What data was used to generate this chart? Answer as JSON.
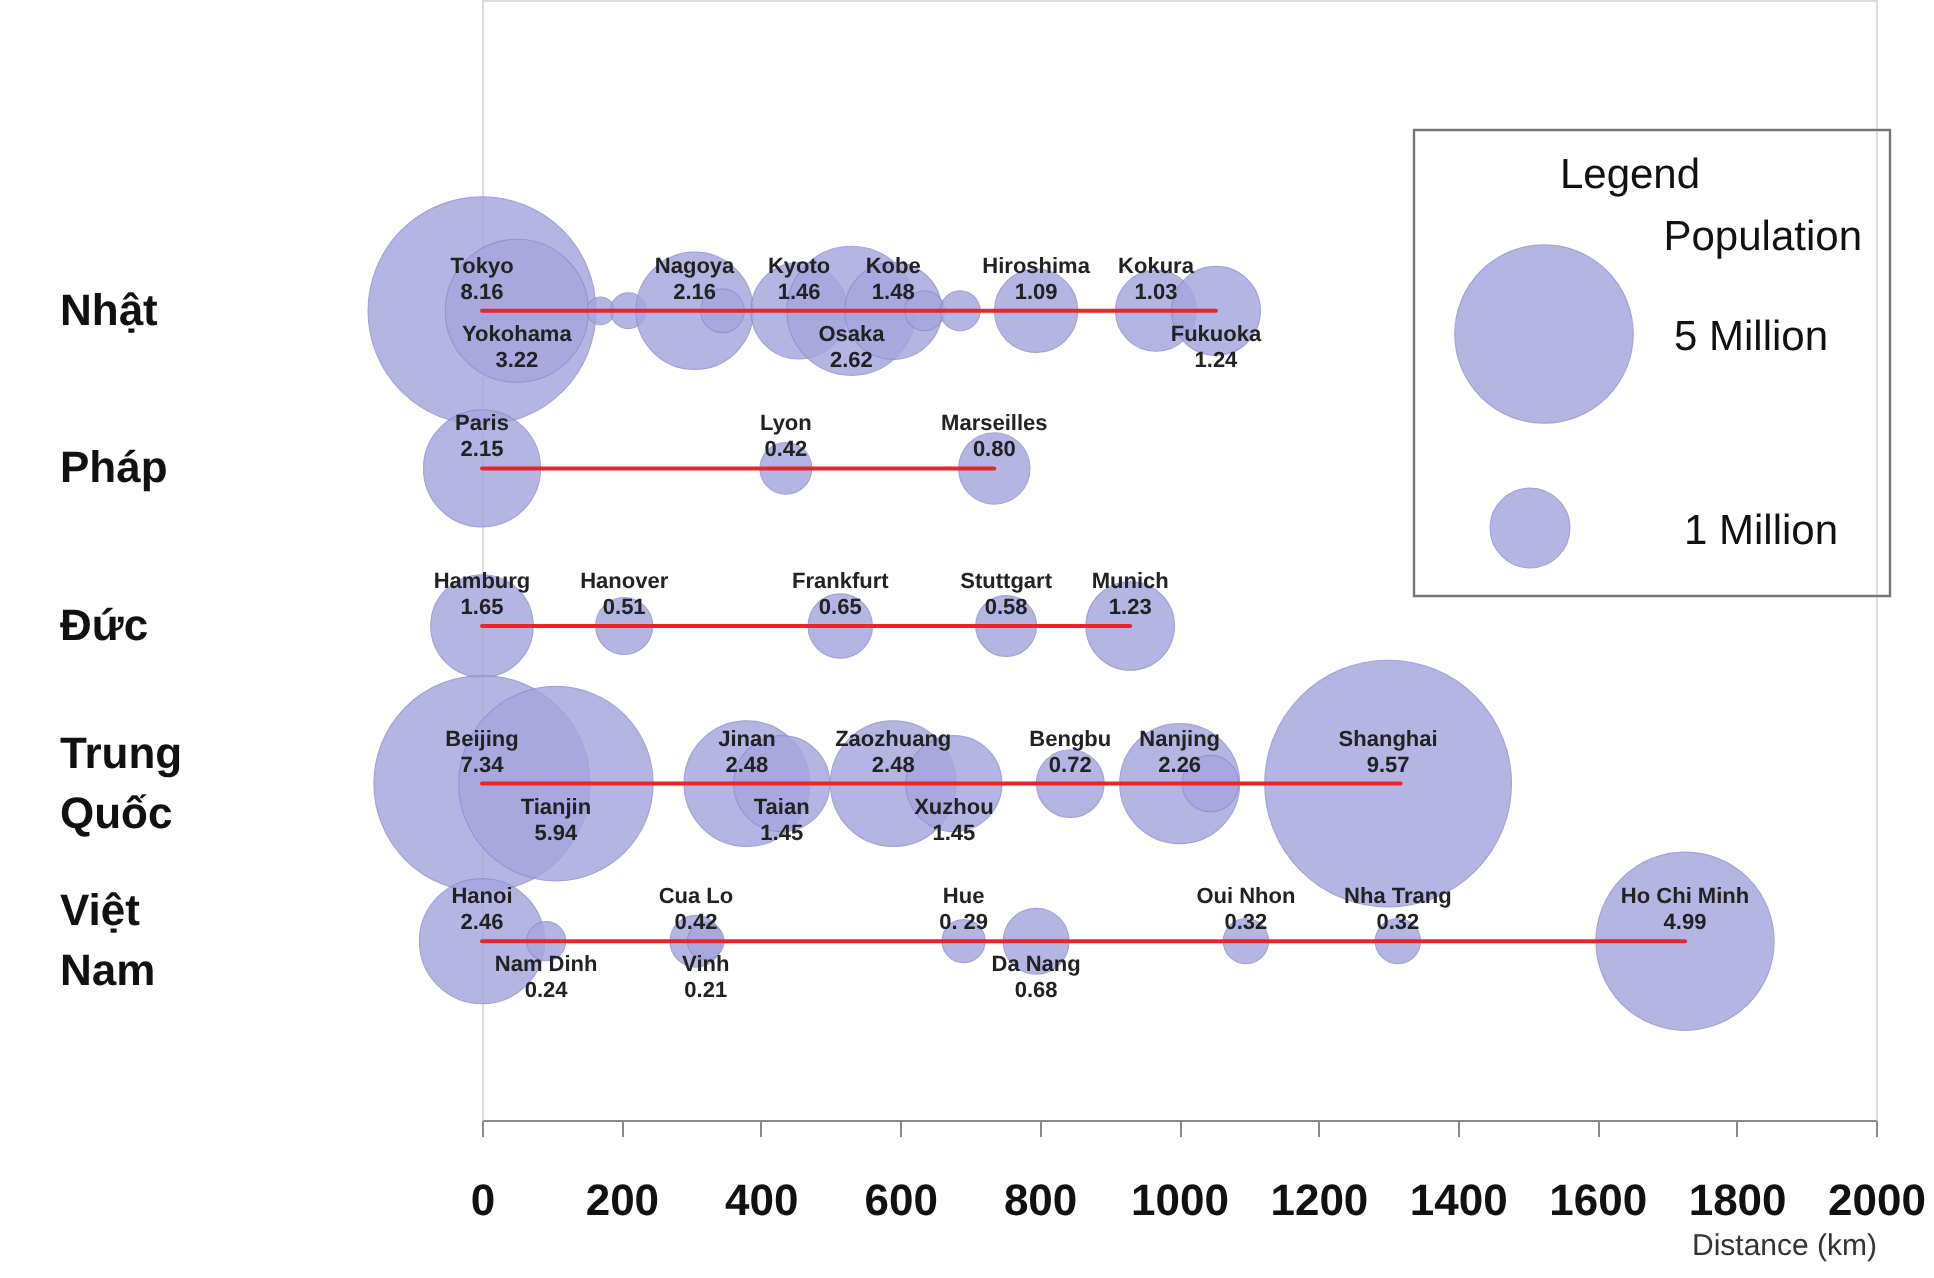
{
  "chart_data": {
    "type": "bubble",
    "orientation": "horizontal",
    "xlabel": "Distance (km)",
    "xlim": [
      0,
      2000
    ],
    "xticks": [
      0,
      200,
      400,
      600,
      800,
      1000,
      1200,
      1400,
      1600,
      1800,
      2000
    ],
    "categories": [
      "Nhật",
      "Pháp",
      "Đức",
      "Trung Quốc",
      "Việt Nam"
    ],
    "legend_title": "Legend\nPopulation",
    "size_legend": [
      {
        "value": 5,
        "label": "5 Million"
      },
      {
        "value": 1,
        "label": "1 Million"
      }
    ],
    "series": [
      {
        "color": "#a6a6de",
        "x": [
          "Nhật",
          "Nhật",
          "Nhật",
          "Nhật",
          "Nhật",
          "Nhật",
          "Nhật",
          "Nhật",
          "Nhật",
          "Nhật",
          "Nhật",
          "Nhật",
          "Nhật",
          "Nhật"
        ],
        "values": [
          0,
          50,
          170,
          210,
          305,
          345,
          455,
          530,
          590,
          635,
          686,
          795,
          967,
          1053
        ],
        "sizes": [
          8.16,
          3.22,
          0.12,
          0.2,
          2.16,
          0.3,
          1.46,
          2.62,
          1.48,
          0.25,
          0.25,
          1.09,
          1.03,
          1.24
        ],
        "value_labels": [
          "Tokyo\n8.16",
          "Yokohama\n3.22",
          null,
          null,
          "Nagoya\n2.16",
          null,
          "Kyoto\n1.46",
          "Osaka\n2.62",
          "Kobe\n1.48",
          null,
          null,
          "Hiroshima\n1.09",
          "Kokura\n1.03",
          "Fukuoka\n1.24"
        ]
      },
      {
        "color": "#a6a6de",
        "x": [
          "Pháp",
          "Pháp",
          "Pháp"
        ],
        "values": [
          0,
          436,
          735
        ],
        "sizes": [
          2.15,
          0.42,
          0.8
        ],
        "value_labels": [
          "Paris\n2.15",
          "Lyon\n0.42",
          "Marseilles\n0.80"
        ]
      },
      {
        "color": "#a6a6de",
        "x": [
          "Đức",
          "Đức",
          "Đức",
          "Đức",
          "Đức"
        ],
        "values": [
          0,
          204,
          514,
          752,
          930
        ],
        "sizes": [
          1.65,
          0.51,
          0.65,
          0.58,
          1.23
        ],
        "value_labels": [
          "Hamburg\n1.65",
          "Hanover\n0.51",
          "Frankfurt\n0.65",
          "Stuttgart\n0.58",
          "Munich\n1.23"
        ]
      },
      {
        "color": "#a6a6de",
        "x": [
          "Trung Quốc",
          "Trung Quốc",
          "Trung Quốc",
          "Trung Quốc",
          "Trung Quốc",
          "Trung Quốc",
          "Trung Quốc",
          "Trung Quốc",
          "Trung Quốc",
          "Trung Quốc"
        ],
        "values": [
          0,
          106,
          380,
          430,
          590,
          677,
          844,
          1001,
          1045,
          1300
        ],
        "sizes": [
          7.34,
          5.94,
          2.48,
          1.45,
          2.48,
          1.45,
          0.72,
          2.26,
          0.5,
          9.57
        ],
        "value_labels": [
          "Beijing\n7.34",
          "Tianjin\n5.94",
          "Jinan\n2.48",
          "Taian\n1.45",
          "Zaozhuang\n2.48",
          "Xuzhou\n1.45",
          "Bengbu\n0.72",
          "Nanjing\n2.26",
          null,
          "Shanghai\n9.57"
        ]
      },
      {
        "color": "#a6a6de",
        "x": [
          "Việt Nam",
          "Việt Nam",
          "Việt Nam",
          "Việt Nam",
          "Việt Nam",
          "Việt Nam",
          "Việt Nam",
          "Việt Nam",
          "Việt Nam"
        ],
        "values": [
          0,
          92,
          307,
          321,
          691,
          795,
          1096,
          1314,
          1726
        ],
        "sizes": [
          2.46,
          0.24,
          0.42,
          0.21,
          0.29,
          0.68,
          0.32,
          0.32,
          4.99
        ],
        "value_labels": [
          "Hanoi\n2.46",
          "Nam Dinh\n0.24",
          "Cua Lo\n0.42",
          "Vinh\n0.21",
          "Hue\n0. 29",
          "Da Nang\n0.68",
          "Oui Nhon\n0.32",
          "Nha Trang\n0.32",
          "Ho Chi Minh\n4.99"
        ]
      },
      {
        "type": "line",
        "color": "#e8262a",
        "x": [
          "Nhật",
          "Nhật"
        ],
        "values": [
          0,
          1053
        ]
      },
      {
        "type": "line",
        "color": "#e8262a",
        "x": [
          "Pháp",
          "Pháp"
        ],
        "values": [
          0,
          735
        ]
      },
      {
        "type": "line",
        "color": "#e8262a",
        "x": [
          "Đức",
          "Đức"
        ],
        "values": [
          0,
          930
        ]
      },
      {
        "type": "line",
        "color": "#e8262a",
        "x": [
          "Trung Quốc",
          "Trung Quốc"
        ],
        "values": [
          0,
          1318
        ]
      },
      {
        "type": "line",
        "color": "#e8262a",
        "x": [
          "Việt Nam",
          "Việt Nam"
        ],
        "values": [
          0,
          1726
        ]
      }
    ]
  }
}
